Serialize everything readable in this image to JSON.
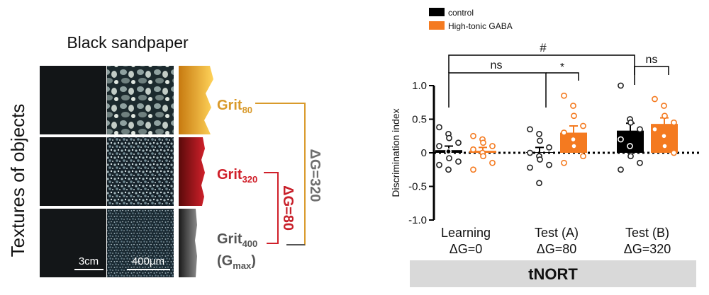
{
  "left_panel": {
    "title": "Black sandpaper",
    "side_label": "Textures of objects",
    "grits": [
      {
        "base": "Grit",
        "sub": "80",
        "color": "#d99a2b"
      },
      {
        "base": "Grit",
        "sub": "320",
        "color": "#d0202a"
      },
      {
        "base": "Grit",
        "sub": "400",
        "color": "#555555"
      }
    ],
    "gmax": {
      "open": "(G",
      "sub": "max",
      "close": ")"
    },
    "delta_labels": [
      {
        "text": "ΔG=80",
        "color": "#c8202a"
      },
      {
        "text": "ΔG=320",
        "color": "#6e6e6e"
      }
    ],
    "scale_bars": [
      "3cm",
      "400μm"
    ]
  },
  "chart_data": {
    "type": "bar",
    "ylabel": "Discrimination index",
    "ylim": [
      -1.0,
      1.0
    ],
    "yticks": [
      "1.0",
      "0.5",
      "0",
      "-0.5",
      "-1.0"
    ],
    "categories": [
      {
        "line1": "Learning",
        "line2": "ΔG=0"
      },
      {
        "line1": "Test (A)",
        "line2": "ΔG=80"
      },
      {
        "line1": "Test (B)",
        "line2": "ΔG=320"
      }
    ],
    "series": [
      {
        "name": "control",
        "color": "#000000",
        "values": [
          0.04,
          0.01,
          0.33
        ],
        "sem": [
          0.06,
          0.07,
          0.11
        ],
        "points": [
          [
            0.38,
            0.28,
            0.22,
            0.15,
            0.1,
            0.02,
            -0.08,
            -0.13,
            -0.18,
            -0.25
          ],
          [
            0.35,
            0.28,
            0.18,
            0.08,
            0.0,
            -0.05,
            -0.1,
            -0.18,
            -0.22,
            -0.45
          ],
          [
            1.0,
            0.5,
            0.45,
            0.35,
            0.2,
            0.1,
            -0.05,
            -0.15,
            -0.25
          ]
        ]
      },
      {
        "name": "High-tonic GABA",
        "color": "#f47a20",
        "values": [
          0.03,
          0.3,
          0.43
        ],
        "sem": [
          0.05,
          0.1,
          0.09
        ],
        "points": [
          [
            0.25,
            0.2,
            0.15,
            0.1,
            0.05,
            0.0,
            -0.05,
            -0.15,
            -0.25
          ],
          [
            0.85,
            0.7,
            0.55,
            0.4,
            0.3,
            0.2,
            0.1,
            -0.05,
            -0.15
          ],
          [
            0.8,
            0.7,
            0.55,
            0.45,
            0.35,
            0.25,
            0.1,
            0.0
          ]
        ]
      }
    ],
    "significance": [
      {
        "label": "ns",
        "from": 0,
        "to": 1
      },
      {
        "label": "*",
        "from": 1,
        "to": 1
      },
      {
        "label": "#",
        "from": 0,
        "to": 2
      },
      {
        "label": "ns",
        "from": 2,
        "to": 2
      }
    ],
    "legend_position": "top-left",
    "footer_label": "tNORT"
  }
}
